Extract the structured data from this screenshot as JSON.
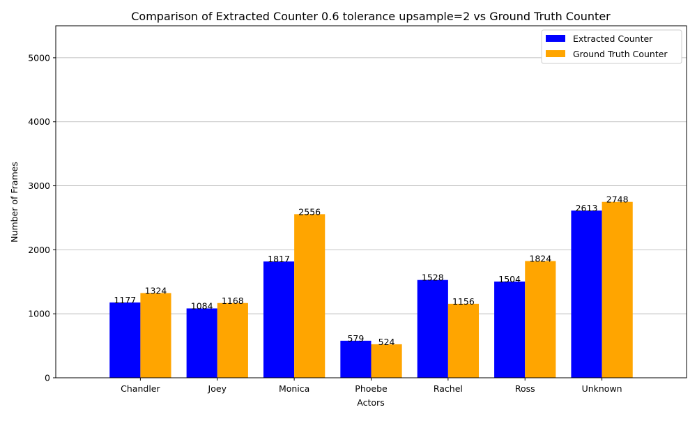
{
  "chart_data": {
    "type": "bar",
    "title": "Comparison of Extracted Counter 0.6 tolerance upsample=2 vs Ground Truth Counter",
    "xlabel": "Actors",
    "ylabel": "Number of Frames",
    "categories": [
      "Chandler",
      "Joey",
      "Monica",
      "Phoebe",
      "Rachel",
      "Ross",
      "Unknown"
    ],
    "series": [
      {
        "name": "Extracted Counter",
        "color": "#0000ff",
        "values": [
          1177,
          1084,
          1817,
          579,
          1528,
          1504,
          2613
        ]
      },
      {
        "name": "Ground Truth Counter",
        "color": "#ffa500",
        "values": [
          1324,
          1168,
          2556,
          524,
          1156,
          1824,
          2748
        ]
      }
    ],
    "ylim": [
      0,
      5500
    ],
    "yticks": [
      0,
      1000,
      2000,
      3000,
      4000,
      5000
    ],
    "grid": "y",
    "legend_position": "top-right",
    "data_labels": true
  }
}
